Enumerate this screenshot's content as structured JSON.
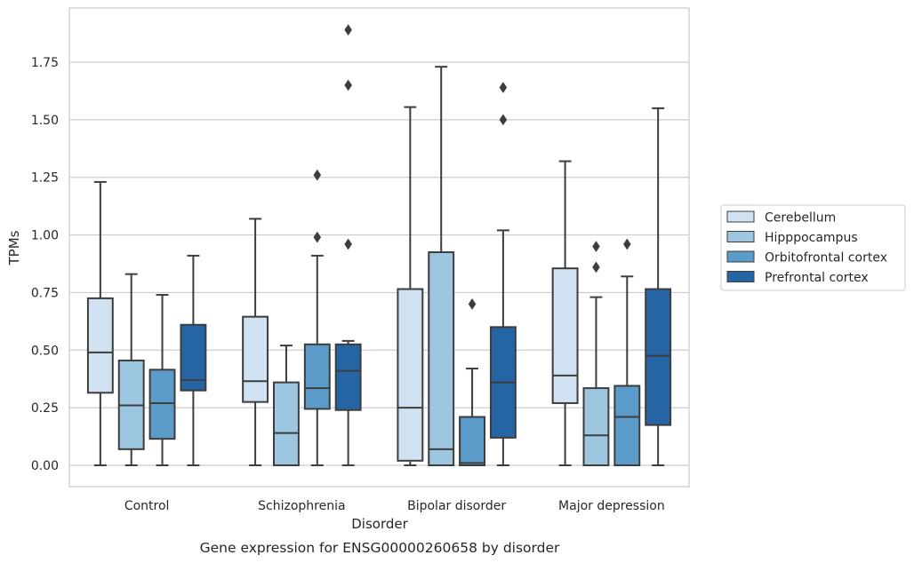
{
  "chart_data": {
    "type": "box",
    "xlabel": "Disorder",
    "ylabel": "TPMs",
    "caption": "Gene expression for ENSG00000260658 by disorder",
    "ylim": [
      -0.09,
      1.98
    ],
    "yticks": [
      "0.00",
      "0.25",
      "0.50",
      "0.75",
      "1.00",
      "1.25",
      "1.50",
      "1.75"
    ],
    "grid": true,
    "legend_position": "right",
    "categories": [
      "Control",
      "Schizophrenia",
      "Bipolar disorder",
      "Major depression"
    ],
    "series": [
      {
        "name": "Cerebellum",
        "color": "#d0e1f2",
        "boxes": [
          {
            "whislo": 0.0,
            "q1": 0.315,
            "med": 0.49,
            "q3": 0.725,
            "whishi": 1.23,
            "fliers": []
          },
          {
            "whislo": 0.0,
            "q1": 0.275,
            "med": 0.365,
            "q3": 0.645,
            "whishi": 1.07,
            "fliers": []
          },
          {
            "whislo": 0.0,
            "q1": 0.02,
            "med": 0.25,
            "q3": 0.765,
            "whishi": 1.555,
            "fliers": []
          },
          {
            "whislo": 0.0,
            "q1": 0.27,
            "med": 0.39,
            "q3": 0.855,
            "whishi": 1.32,
            "fliers": []
          }
        ]
      },
      {
        "name": "Hipppocampus",
        "color": "#9dc6e0",
        "boxes": [
          {
            "whislo": 0.0,
            "q1": 0.07,
            "med": 0.26,
            "q3": 0.455,
            "whishi": 0.83,
            "fliers": []
          },
          {
            "whislo": 0.0,
            "q1": 0.0,
            "med": 0.14,
            "q3": 0.36,
            "whishi": 0.52,
            "fliers": []
          },
          {
            "whislo": 0.0,
            "q1": 0.0,
            "med": 0.07,
            "q3": 0.925,
            "whishi": 1.73,
            "fliers": []
          },
          {
            "whislo": 0.0,
            "q1": 0.0,
            "med": 0.13,
            "q3": 0.335,
            "whishi": 0.73,
            "fliers": [
              0.86,
              0.95
            ]
          }
        ]
      },
      {
        "name": "Orbitofrontal cortex",
        "color": "#5a9bc9",
        "boxes": [
          {
            "whislo": 0.0,
            "q1": 0.115,
            "med": 0.27,
            "q3": 0.415,
            "whishi": 0.74,
            "fliers": []
          },
          {
            "whislo": 0.0,
            "q1": 0.245,
            "med": 0.335,
            "q3": 0.525,
            "whishi": 0.91,
            "fliers": [
              0.99,
              1.26
            ]
          },
          {
            "whislo": 0.0,
            "q1": 0.0,
            "med": 0.01,
            "q3": 0.21,
            "whishi": 0.42,
            "fliers": [
              0.7
            ]
          },
          {
            "whislo": 0.0,
            "q1": 0.0,
            "med": 0.21,
            "q3": 0.345,
            "whishi": 0.82,
            "fliers": [
              0.96
            ]
          }
        ]
      },
      {
        "name": "Prefrontal cortex",
        "color": "#2565a4",
        "boxes": [
          {
            "whislo": 0.0,
            "q1": 0.325,
            "med": 0.37,
            "q3": 0.61,
            "whishi": 0.91,
            "fliers": []
          },
          {
            "whislo": 0.0,
            "q1": 0.24,
            "med": 0.41,
            "q3": 0.525,
            "whishi": 0.54,
            "fliers": [
              0.96,
              1.65,
              1.89
            ]
          },
          {
            "whislo": 0.0,
            "q1": 0.12,
            "med": 0.36,
            "q3": 0.6,
            "whishi": 1.02,
            "fliers": [
              1.5,
              1.64
            ]
          },
          {
            "whislo": 0.0,
            "q1": 0.175,
            "med": 0.475,
            "q3": 0.765,
            "whishi": 1.55,
            "fliers": []
          }
        ]
      }
    ]
  }
}
